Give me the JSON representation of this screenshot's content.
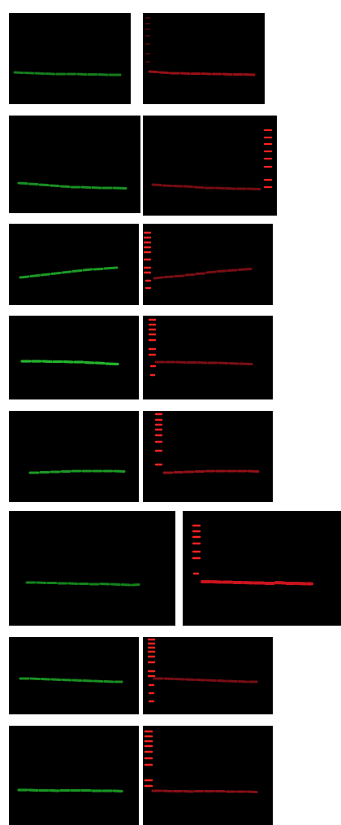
{
  "colors": {
    "background": "#000000",
    "green_channel": "#1fbf2a",
    "green_channel_dim": "#138a1c",
    "red_channel": "#b3141c",
    "red_ladder": "#ff2a2a"
  },
  "rows": [
    {
      "green_panel": "blot-1-green",
      "red_panel": "blot-1-red"
    },
    {
      "green_panel": "blot-2-green",
      "red_panel": "blot-2-red"
    },
    {
      "green_panel": "blot-3-green",
      "red_panel": "blot-3-red"
    },
    {
      "green_panel": "blot-4-green",
      "red_panel": "blot-4-red"
    },
    {
      "green_panel": "blot-5-green",
      "red_panel": "blot-5-red"
    },
    {
      "green_panel": "blot-6-green",
      "red_panel": "blot-6-red"
    },
    {
      "green_panel": "blot-7-green",
      "red_panel": "blot-7-red"
    },
    {
      "green_panel": "blot-8-green",
      "red_panel": "blot-8-red"
    }
  ]
}
